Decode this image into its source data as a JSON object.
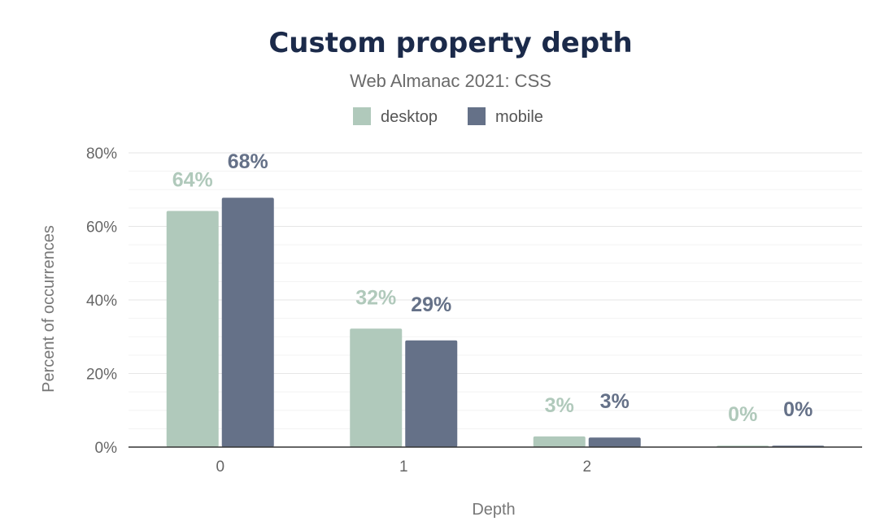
{
  "chart_data": {
    "type": "bar",
    "title": "Custom property depth",
    "subtitle": "Web Almanac 2021: CSS",
    "xlabel": "Depth",
    "ylabel": "Percent of occurrences",
    "categories": [
      "0",
      "1",
      "2",
      ""
    ],
    "series": [
      {
        "name": "desktop",
        "color": "#b0c9bb",
        "values": [
          64.2,
          32.2,
          2.9,
          0.4
        ],
        "labels": [
          "64%",
          "32%",
          "3%",
          "0%"
        ]
      },
      {
        "name": "mobile",
        "color": "#657188",
        "values": [
          67.8,
          29.0,
          2.6,
          0.4
        ],
        "labels": [
          "68%",
          "29%",
          "3%",
          "0%"
        ]
      }
    ],
    "ylim": [
      0,
      80
    ],
    "yticks": [
      0,
      20,
      40,
      60,
      80
    ],
    "ytick_labels": [
      "0%",
      "20%",
      "40%",
      "60%",
      "80%"
    ],
    "grid": true,
    "legend_position": "top-center"
  }
}
